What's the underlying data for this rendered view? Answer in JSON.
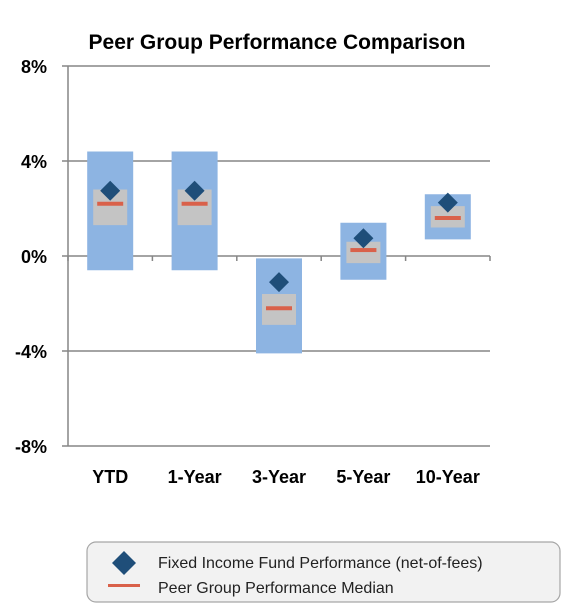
{
  "chart_data": {
    "type": "box-range",
    "title": "Peer Group Performance Comparison",
    "y_ticks": [
      "8%",
      "4%",
      "0%",
      "-4%",
      "-8%"
    ],
    "y_tick_values": [
      8,
      4,
      0,
      -4,
      -8
    ],
    "ylim": [
      -8,
      8
    ],
    "grid": true,
    "categories": [
      "YTD",
      "1-Year",
      "3-Year",
      "5-Year",
      "10-Year"
    ],
    "peer_range": [
      {
        "low": -0.6,
        "high": 4.4
      },
      {
        "low": -0.6,
        "high": 4.4
      },
      {
        "low": -4.1,
        "high": -0.1
      },
      {
        "low": -1.0,
        "high": 1.4
      },
      {
        "low": 0.7,
        "high": 2.6
      }
    ],
    "interquartile": [
      {
        "low": 1.3,
        "high": 2.8
      },
      {
        "low": 1.3,
        "high": 2.8
      },
      {
        "low": -2.9,
        "high": -1.6
      },
      {
        "low": -0.3,
        "high": 0.6
      },
      {
        "low": 1.2,
        "high": 2.1
      }
    ],
    "median": [
      2.2,
      2.2,
      -2.2,
      0.25,
      1.6
    ],
    "fund": [
      2.75,
      2.75,
      -1.1,
      0.75,
      2.25
    ],
    "legend": {
      "placement": "bottom",
      "items": [
        {
          "label": "Fixed Income Fund Performance (net-of-fees)",
          "marker": "diamond"
        },
        {
          "label": "Peer Group Performance Median",
          "marker": "line"
        }
      ]
    },
    "colors": {
      "range": "#8db4e2",
      "interquartile": "#c4c4c4",
      "median": "#d9614a",
      "fund": "#1f4e79",
      "grid": "#868686",
      "legend_bg": "#f2f2f2",
      "legend_border": "#a6a6a6"
    }
  }
}
